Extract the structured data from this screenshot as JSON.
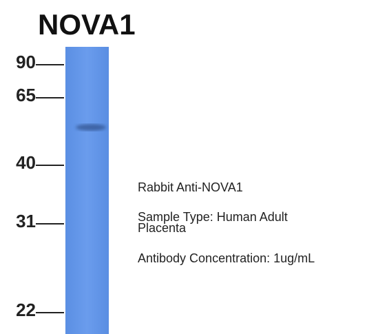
{
  "title": "NOVA1",
  "markers": [
    90,
    65,
    40,
    31,
    22
  ],
  "notes": [
    "Rabbit Anti-NOVA1",
    "Sample Type: Human Adult",
    "Placenta",
    "Antibody Concentration: 1ug/mL"
  ]
}
